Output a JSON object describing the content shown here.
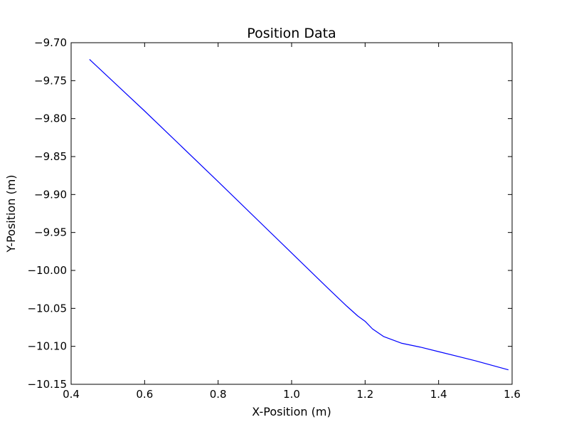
{
  "chart_data": {
    "type": "line",
    "title": "Position Data",
    "xlabel": "X-Position (m)",
    "ylabel": "Y-Position (m)",
    "xlim": [
      0.4,
      1.6
    ],
    "ylim": [
      -10.15,
      -9.7
    ],
    "xticks": [
      0.4,
      0.6,
      0.8,
      1.0,
      1.2,
      1.4,
      1.6
    ],
    "xtick_labels": [
      "0.4",
      "0.6",
      "0.8",
      "1.0",
      "1.2",
      "1.4",
      "1.6"
    ],
    "yticks": [
      -9.7,
      -9.75,
      -9.8,
      -9.85,
      -9.9,
      -9.95,
      -10.0,
      -10.05,
      -10.1,
      -10.15
    ],
    "ytick_labels": [
      "−9.70",
      "−9.75",
      "−9.80",
      "−9.85",
      "−9.90",
      "−9.95",
      "−10.00",
      "−10.05",
      "−10.10",
      "−10.15"
    ],
    "grid": false,
    "series": [
      {
        "color": "#0000ff",
        "x": [
          0.45,
          0.6,
          0.8,
          1.0,
          1.1,
          1.15,
          1.18,
          1.2,
          1.22,
          1.25,
          1.3,
          1.35,
          1.4,
          1.5,
          1.59
        ],
        "y": [
          -9.722,
          -9.79,
          -9.883,
          -9.977,
          -10.024,
          -10.047,
          -10.06,
          -10.067,
          -10.077,
          -10.087,
          -10.096,
          -10.101,
          -10.107,
          -10.119,
          -10.131
        ]
      }
    ]
  }
}
